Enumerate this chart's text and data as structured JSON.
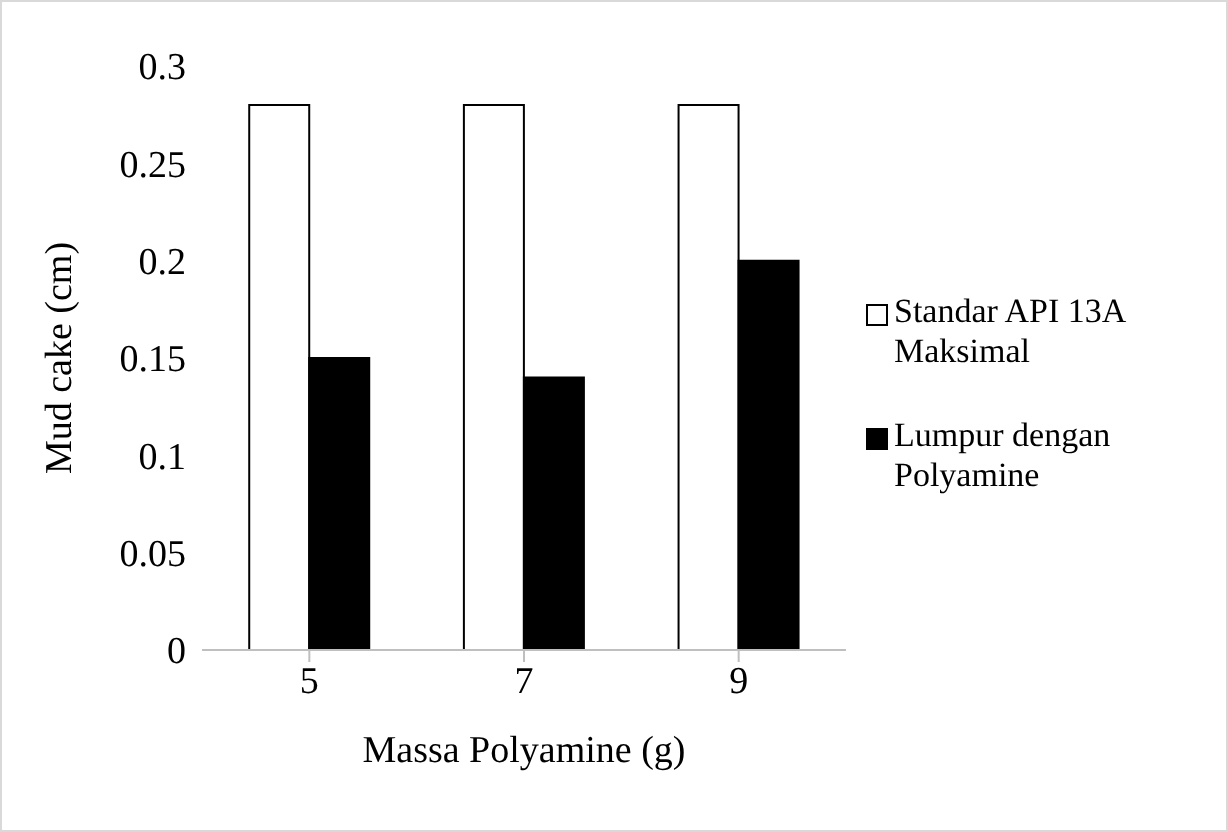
{
  "chart_data": {
    "type": "bar",
    "xlabel": "Massa Polyamine (g)",
    "ylabel": "Mud cake (cm)",
    "categories": [
      "5",
      "7",
      "9"
    ],
    "series": [
      {
        "name": "Standar API 13A Maksimal",
        "color": "#ffffff",
        "values": [
          0.28,
          0.28,
          0.28
        ]
      },
      {
        "name": "Lumpur dengan Polyamine",
        "color": "#000000",
        "values": [
          0.15,
          0.14,
          0.2
        ]
      }
    ],
    "ylim": [
      0,
      0.3
    ],
    "yticks": [
      0,
      0.05,
      0.1,
      0.15,
      0.2,
      0.25,
      0.3
    ],
    "grid": false,
    "legend": "right"
  }
}
